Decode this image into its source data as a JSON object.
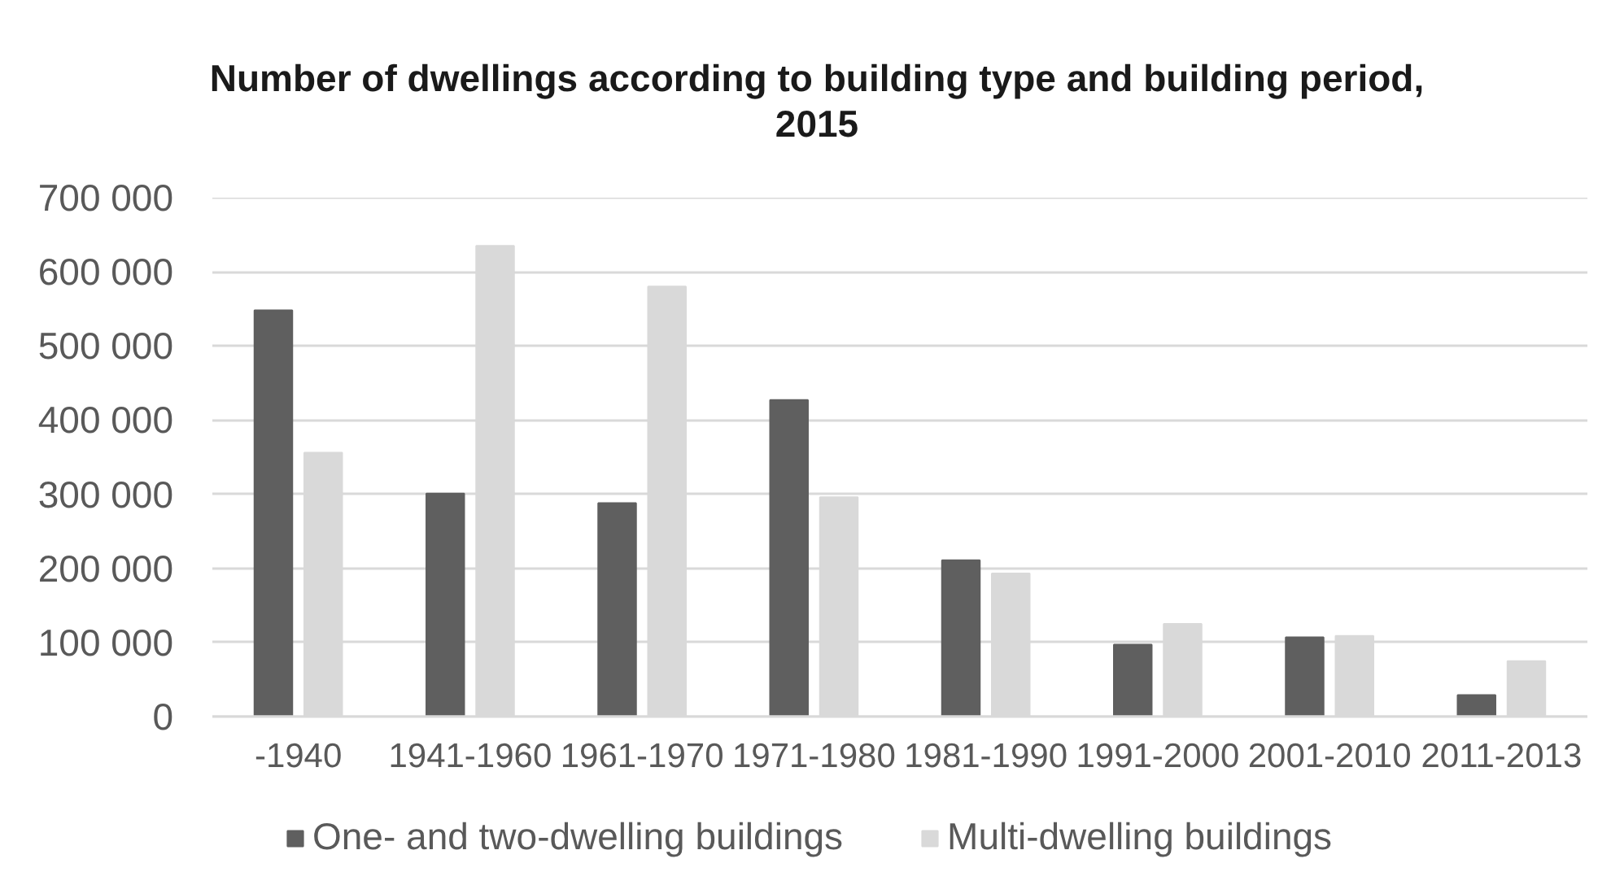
{
  "chart_data": {
    "type": "bar",
    "title": "Number of dwellings according to building type and building period, 2015",
    "categories": [
      "-1940",
      "1941-1960",
      "1961-1970",
      "1971-1980",
      "1981-1990",
      "1991-2000",
      "2001-2010",
      "2011-2013"
    ],
    "series": [
      {
        "name": "One- and two-dwelling buildings",
        "color": "#5f5f5f",
        "values": [
          548000,
          301000,
          288000,
          427000,
          211000,
          97000,
          107000,
          29000
        ]
      },
      {
        "name": "Multi-dwelling buildings",
        "color": "#d9d9d9",
        "values": [
          356000,
          635000,
          580000,
          296000,
          193000,
          125000,
          109000,
          75000
        ]
      }
    ],
    "ylim": [
      0,
      700000
    ],
    "yticks": [
      0,
      {
        "value": 100000,
        "label": "100 000"
      },
      {
        "value": 200000,
        "label": "200 000"
      },
      {
        "value": 300000,
        "label": "300 000"
      },
      {
        "value": 400000,
        "label": "400 000"
      },
      {
        "value": 500000,
        "label": "500 000"
      },
      {
        "value": 600000,
        "label": "600 000"
      },
      {
        "value": 700000,
        "label": "700 000"
      }
    ],
    "grid": "y",
    "legend": "bottom"
  }
}
